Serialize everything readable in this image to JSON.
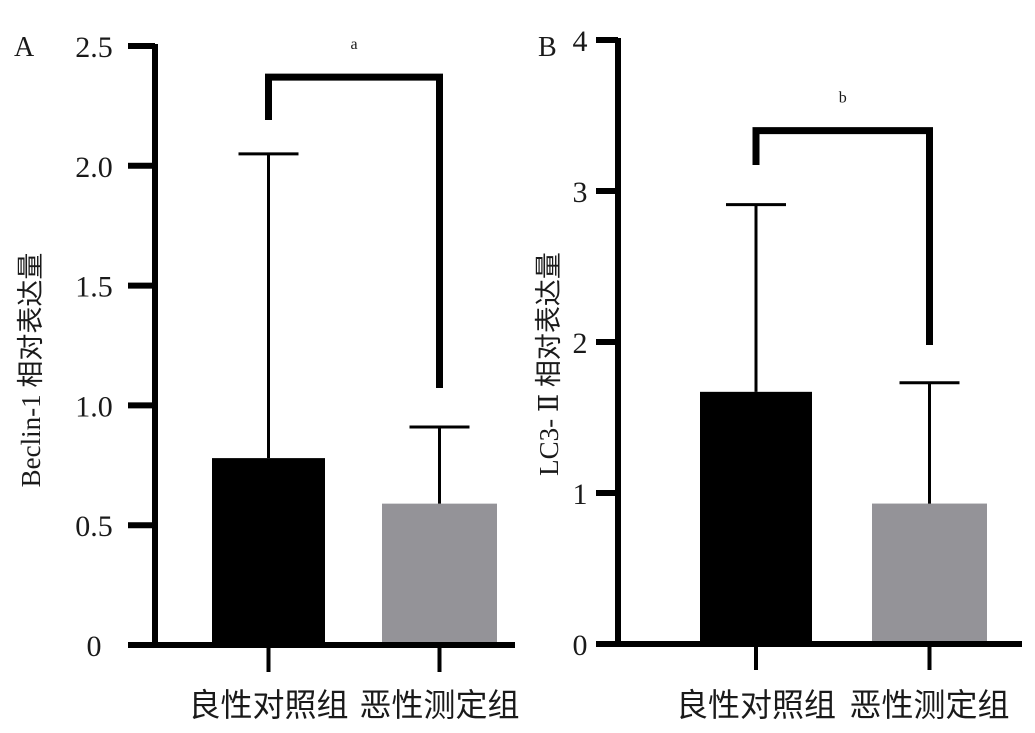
{
  "chart_data": [
    {
      "type": "bar",
      "panel": "A",
      "title": "",
      "xlabel": "",
      "ylabel": "Beclin-1 相对表达量",
      "categories": [
        "良性对照组",
        "恶性测定组"
      ],
      "values": [
        0.78,
        0.59
      ],
      "error_upper": [
        2.05,
        0.91
      ],
      "bar_colors": [
        "#000000",
        "#949398"
      ],
      "ylim": [
        0,
        2.5
      ],
      "yticks": [
        0,
        0.5,
        1.0,
        1.5,
        2.0,
        2.5
      ],
      "ytick_labels": [
        "0",
        "0.5",
        "1.0",
        "1.5",
        "2.0",
        "2.5"
      ],
      "significance": {
        "label": "a",
        "bracket_level": 2.37
      },
      "grid": false
    },
    {
      "type": "bar",
      "panel": "B",
      "title": "",
      "xlabel": "",
      "ylabel": "LC3- Ⅱ 相对表达量",
      "categories": [
        "良性对照组",
        "恶性测定组"
      ],
      "values": [
        1.67,
        0.93
      ],
      "error_upper": [
        2.91,
        1.73
      ],
      "bar_colors": [
        "#000000",
        "#949398"
      ],
      "ylim": [
        0,
        4
      ],
      "yticks": [
        0,
        1,
        2,
        3,
        4
      ],
      "ytick_labels": [
        "0",
        "1",
        "2",
        "3",
        "4"
      ],
      "significance": {
        "label": "b",
        "bracket_level": 3.4
      },
      "grid": false
    }
  ]
}
